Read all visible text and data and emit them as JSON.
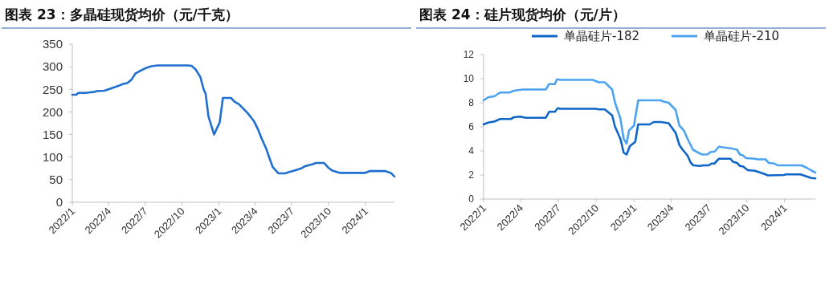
{
  "chart_data": [
    {
      "type": "line",
      "title": "图表 23：多晶硅现货均价（元/千克）",
      "xlim": [
        "2022-01-01",
        "2024-03-13"
      ],
      "xticks": [
        {
          "value": "2022-01-01",
          "label": "2022/1"
        },
        {
          "value": "2022-04-01",
          "label": "2022/4"
        },
        {
          "value": "2022-07-01",
          "label": "2022/7"
        },
        {
          "value": "2022-10-01",
          "label": "2022/10"
        },
        {
          "value": "2023-01-01",
          "label": "2023/1"
        },
        {
          "value": "2023-04-01",
          "label": "2023/4"
        },
        {
          "value": "2023-07-01",
          "label": "2023/7"
        },
        {
          "value": "2023-10-01",
          "label": "2023/10"
        },
        {
          "value": "2024-01-01",
          "label": "2024/1"
        }
      ],
      "ylim": [
        0,
        350
      ],
      "yticks": [
        0,
        50,
        100,
        150,
        200,
        250,
        300,
        350
      ],
      "grid": false,
      "legend": false,
      "marker": "none",
      "line_style": "solid",
      "series": [
        {
          "color": "#1f6fd0",
          "x": [
            "2022-01-01",
            "2022-01-11",
            "2022-01-16",
            "2022-02-03",
            "2022-02-10",
            "2022-02-23",
            "2022-03-03",
            "2022-03-22",
            "2022-04-04",
            "2022-04-24",
            "2022-05-08",
            "2022-05-18",
            "2022-05-29",
            "2022-06-07",
            "2022-06-17",
            "2022-07-03",
            "2022-07-17",
            "2022-08-02",
            "2022-10-15",
            "2022-10-25",
            "2022-11-04",
            "2022-11-16",
            "2022-11-24",
            "2022-11-29",
            "2022-12-06",
            "2022-12-20",
            "2023-01-03",
            "2023-01-11",
            "2023-01-31",
            "2023-02-08",
            "2023-02-20",
            "2023-03-14",
            "2023-03-29",
            "2023-04-09",
            "2023-04-18",
            "2023-04-29",
            "2023-05-06",
            "2023-05-15",
            "2023-05-29",
            "2023-06-15",
            "2023-06-25",
            "2023-07-08",
            "2023-07-25",
            "2023-08-04",
            "2023-08-21",
            "2023-08-31",
            "2023-09-20",
            "2023-09-30",
            "2023-10-10",
            "2023-10-30",
            "2023-12-30",
            "2024-01-11",
            "2024-02-20",
            "2024-03-04",
            "2024-03-13"
          ],
          "values": [
            238,
            238,
            242,
            242,
            243,
            244,
            246,
            247,
            251,
            257,
            262,
            264,
            272,
            285,
            290,
            297,
            301,
            303,
            303,
            302,
            294,
            277,
            250,
            240,
            190,
            150,
            177,
            231,
            231,
            223,
            217,
            197,
            180,
            160,
            140,
            118,
            100,
            78,
            64,
            64,
            67,
            70,
            75,
            80,
            84,
            87,
            87,
            77,
            70,
            65,
            65,
            69,
            69,
            65,
            57
          ]
        }
      ]
    },
    {
      "type": "line",
      "title": "图表 24：硅片现货均价（元/片）",
      "xlim": [
        "2022-01-01",
        "2024-03-16"
      ],
      "xticks": [
        {
          "value": "2022-01-01",
          "label": "2022/1"
        },
        {
          "value": "2022-04-01",
          "label": "2022/4"
        },
        {
          "value": "2022-07-01",
          "label": "2022/7"
        },
        {
          "value": "2022-10-01",
          "label": "2022/10"
        },
        {
          "value": "2023-01-01",
          "label": "2023/1"
        },
        {
          "value": "2023-04-01",
          "label": "2023/4"
        },
        {
          "value": "2023-07-01",
          "label": "2023/7"
        },
        {
          "value": "2023-10-01",
          "label": "2023/10"
        },
        {
          "value": "2024-01-01",
          "label": "2024/1"
        }
      ],
      "ylim": [
        0,
        12
      ],
      "yticks": [
        0,
        2,
        4,
        6,
        8,
        10,
        12
      ],
      "grid": false,
      "legend": "top",
      "marker": "none",
      "line_style": "solid",
      "series": [
        {
          "name": "单晶硅片-182",
          "color": "#0f66c7",
          "x": [
            "2022-01-01",
            "2022-01-12",
            "2022-01-28",
            "2022-02-10",
            "2022-03-08",
            "2022-03-16",
            "2022-03-31",
            "2022-04-13",
            "2022-06-01",
            "2022-06-09",
            "2022-06-23",
            "2022-06-30",
            "2022-07-06",
            "2022-09-29",
            "2022-10-09",
            "2022-10-22",
            "2022-11-09",
            "2022-11-16",
            "2022-11-29",
            "2022-12-07",
            "2022-12-14",
            "2022-12-22",
            "2023-01-04",
            "2023-01-11",
            "2023-02-08",
            "2023-02-18",
            "2023-03-07",
            "2023-03-26",
            "2023-04-12",
            "2023-04-21",
            "2023-04-28",
            "2023-05-11",
            "2023-05-19",
            "2023-05-25",
            "2023-06-09",
            "2023-06-19",
            "2023-07-02",
            "2023-07-08",
            "2023-07-15",
            "2023-07-26",
            "2023-08-23",
            "2023-08-29",
            "2023-09-08",
            "2023-09-15",
            "2023-09-23",
            "2023-10-04",
            "2023-10-21",
            "2023-10-30",
            "2023-11-12",
            "2023-11-22",
            "2023-12-31",
            "2024-01-04",
            "2024-02-09",
            "2024-02-22",
            "2024-03-06",
            "2024-03-16"
          ],
          "values": [
            6.2,
            6.35,
            6.45,
            6.65,
            6.65,
            6.8,
            6.85,
            6.75,
            6.75,
            7.25,
            7.25,
            7.55,
            7.5,
            7.5,
            7.45,
            7.45,
            6.95,
            6.0,
            5.0,
            3.85,
            3.7,
            4.4,
            4.75,
            6.2,
            6.2,
            6.4,
            6.4,
            6.3,
            5.5,
            4.5,
            4.15,
            3.6,
            3.0,
            2.8,
            2.75,
            2.8,
            2.8,
            2.95,
            2.95,
            3.35,
            3.35,
            3.1,
            3.0,
            2.75,
            2.7,
            2.4,
            2.35,
            2.25,
            2.1,
            1.97,
            2.0,
            2.05,
            2.05,
            1.9,
            1.75,
            1.72
          ]
        },
        {
          "name": "单晶硅片-210",
          "color": "#4da3f0",
          "x": [
            "2022-01-01",
            "2022-01-12",
            "2022-01-28",
            "2022-02-10",
            "2022-03-05",
            "2022-03-16",
            "2022-04-06",
            "2022-06-01",
            "2022-06-09",
            "2022-06-23",
            "2022-06-28",
            "2022-07-06",
            "2022-09-23",
            "2022-10-07",
            "2022-10-22",
            "2022-11-09",
            "2022-11-16",
            "2022-11-29",
            "2022-12-07",
            "2022-12-14",
            "2022-12-20",
            "2023-01-01",
            "2023-01-11",
            "2023-03-07",
            "2023-03-13",
            "2023-03-26",
            "2023-04-12",
            "2023-04-21",
            "2023-05-02",
            "2023-05-11",
            "2023-05-24",
            "2023-06-09",
            "2023-06-16",
            "2023-06-29",
            "2023-07-05",
            "2023-07-16",
            "2023-07-26",
            "2023-08-04",
            "2023-08-26",
            "2023-09-08",
            "2023-09-15",
            "2023-09-21",
            "2023-09-30",
            "2023-10-21",
            "2023-10-27",
            "2023-11-16",
            "2023-11-24",
            "2023-12-08",
            "2023-12-15",
            "2024-02-11",
            "2024-02-24",
            "2024-03-05",
            "2024-03-16"
          ],
          "values": [
            8.2,
            8.45,
            8.55,
            8.85,
            8.85,
            9.0,
            9.1,
            9.1,
            9.55,
            9.55,
            9.95,
            9.9,
            9.9,
            9.7,
            9.7,
            9.1,
            8.0,
            6.7,
            5.0,
            4.6,
            5.7,
            6.1,
            8.2,
            8.2,
            8.1,
            8.0,
            7.4,
            6.1,
            5.7,
            5.0,
            4.1,
            3.8,
            3.7,
            3.72,
            3.9,
            3.95,
            4.35,
            4.3,
            4.2,
            4.1,
            3.7,
            3.65,
            3.4,
            3.35,
            3.3,
            3.3,
            3.0,
            2.95,
            2.8,
            2.8,
            2.6,
            2.4,
            2.2
          ]
        }
      ]
    }
  ]
}
